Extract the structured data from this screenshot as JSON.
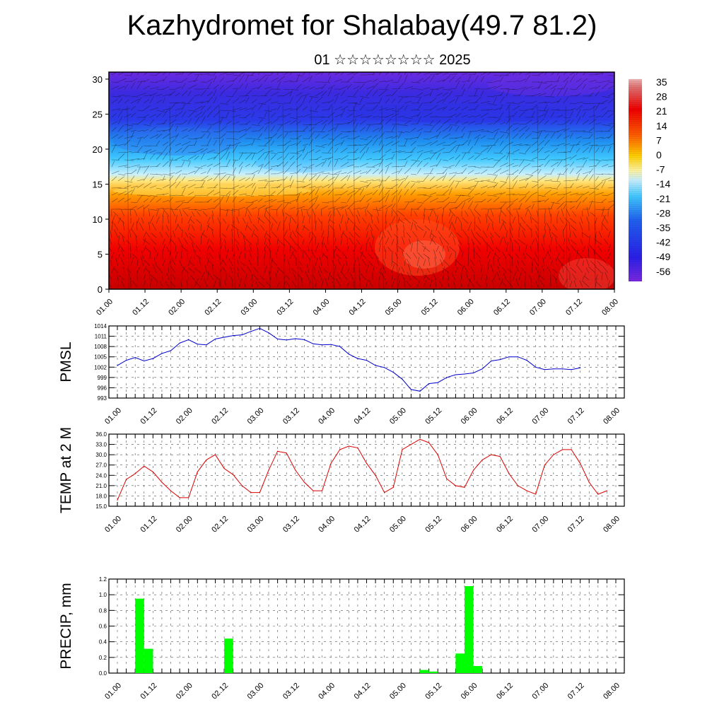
{
  "header": {
    "title": "Kazhydromet for Shalabay(49.7 81.2)",
    "subtitle": "01 ☆☆☆☆☆☆☆☆ 2025"
  },
  "chart_data": [
    {
      "type": "heatmap",
      "title": "",
      "y_ticks": [
        "0",
        "5",
        "10",
        "15",
        "20",
        "25",
        "30"
      ],
      "y_range": [
        0,
        31
      ],
      "x_ticks": [
        "01.00",
        "01.12",
        "02.00",
        "02.12",
        "03.00",
        "03.12",
        "04.00",
        "04.12",
        "05.00",
        "05.12",
        "06.00",
        "06.12",
        "07.00",
        "07.12",
        "08.00"
      ],
      "colorbar_labels": [
        "35",
        "28",
        "21",
        "14",
        "7",
        "0",
        "-7",
        "-14",
        "-21",
        "-28",
        "-35",
        "-42",
        "-49",
        "-56"
      ],
      "colors": {
        "hot": "#e80000",
        "warm": "#ff6000",
        "yellow": "#ffe060",
        "cyan": "#40c8ff",
        "blue": "#2a3ae8",
        "violet": "#7a28e0"
      }
    },
    {
      "type": "line",
      "ylabel": "PMSL",
      "y_ticks": [
        "1014",
        "1011",
        "1008",
        "1005",
        "1002",
        "999",
        "996",
        "993"
      ],
      "ylim": [
        993,
        1014
      ],
      "x_ticks": [
        "01.00",
        "01.12",
        "02.00",
        "02.12",
        "03.00",
        "03.12",
        "04.00",
        "04.12",
        "05.00",
        "05.12",
        "06.00",
        "06.12",
        "07.00",
        "07.12",
        "08.00"
      ],
      "color": "#0000cc",
      "values": [
        1002.5,
        1004.0,
        1004.8,
        1003.8,
        1004.5,
        1006.0,
        1006.8,
        1009.0,
        1010.0,
        1008.7,
        1008.5,
        1010.2,
        1010.7,
        1011.2,
        1011.4,
        1012.4,
        1013.3,
        1012.0,
        1010.2,
        1009.9,
        1010.3,
        1010.0,
        1008.8,
        1008.5,
        1008.6,
        1008.0,
        1005.8,
        1004.5,
        1004.0,
        1002.5,
        1001.9,
        1000.5,
        998.5,
        995.5,
        995.0,
        997.2,
        997.5,
        999.0,
        999.8,
        1000.0,
        1000.3,
        1001.5,
        1003.8,
        1004.2,
        1005.0,
        1005.0,
        1004.0,
        1002.0,
        1001.3,
        1001.5,
        1001.5,
        1001.3,
        1001.8
      ]
    },
    {
      "type": "line",
      "ylabel": "TEMP at 2 M",
      "y_ticks": [
        "36.0",
        "33.0",
        "30.0",
        "27.0",
        "24.0",
        "21.0",
        "18.0",
        "15.0"
      ],
      "ylim": [
        15,
        36
      ],
      "x_ticks": [
        "01.00",
        "01.12",
        "02.00",
        "02.12",
        "03.00",
        "03.12",
        "04.00",
        "04.12",
        "05.00",
        "05.12",
        "06.00",
        "06.12",
        "07.00",
        "07.12",
        "08.00"
      ],
      "color": "#dd0000",
      "values": [
        16.8,
        22.8,
        24.5,
        26.7,
        25.0,
        22.0,
        19.5,
        17.5,
        17.5,
        25.0,
        28.5,
        30.0,
        26.0,
        24.2,
        21.0,
        19.0,
        19.0,
        25.5,
        31.0,
        30.5,
        25.5,
        22.0,
        19.5,
        19.5,
        27.5,
        31.5,
        32.5,
        32.0,
        27.5,
        24.0,
        19.0,
        20.5,
        31.5,
        33.0,
        34.5,
        33.5,
        30.0,
        23.0,
        21.0,
        20.5,
        25.5,
        28.5,
        30.0,
        29.5,
        24.5,
        21.0,
        19.5,
        18.5,
        27.0,
        30.0,
        31.5,
        31.5,
        27.5,
        22.0,
        18.5,
        19.5
      ]
    },
    {
      "type": "bar",
      "ylabel": "PRECIP, mm",
      "y_ticks": [
        "1.2",
        "1.0",
        "0.8",
        "0.6",
        "0.4",
        "0.2",
        "0.0"
      ],
      "ylim": [
        0,
        1.2
      ],
      "x_ticks": [
        "01.00",
        "01.12",
        "02.00",
        "02.12",
        "03.00",
        "03.12",
        "04.00",
        "04.12",
        "05.00",
        "05.12",
        "06.00",
        "06.12",
        "07.00",
        "07.12",
        "08.00"
      ],
      "color": "#00ff00",
      "bars": [
        {
          "step": 2,
          "value": 0.95
        },
        {
          "step": 3,
          "value": 0.31
        },
        {
          "step": 12,
          "value": 0.44
        },
        {
          "step": 34,
          "value": 0.04
        },
        {
          "step": 35,
          "value": 0.02
        },
        {
          "step": 38,
          "value": 0.25
        },
        {
          "step": 39,
          "value": 1.11
        },
        {
          "step": 40,
          "value": 0.09
        }
      ]
    }
  ]
}
